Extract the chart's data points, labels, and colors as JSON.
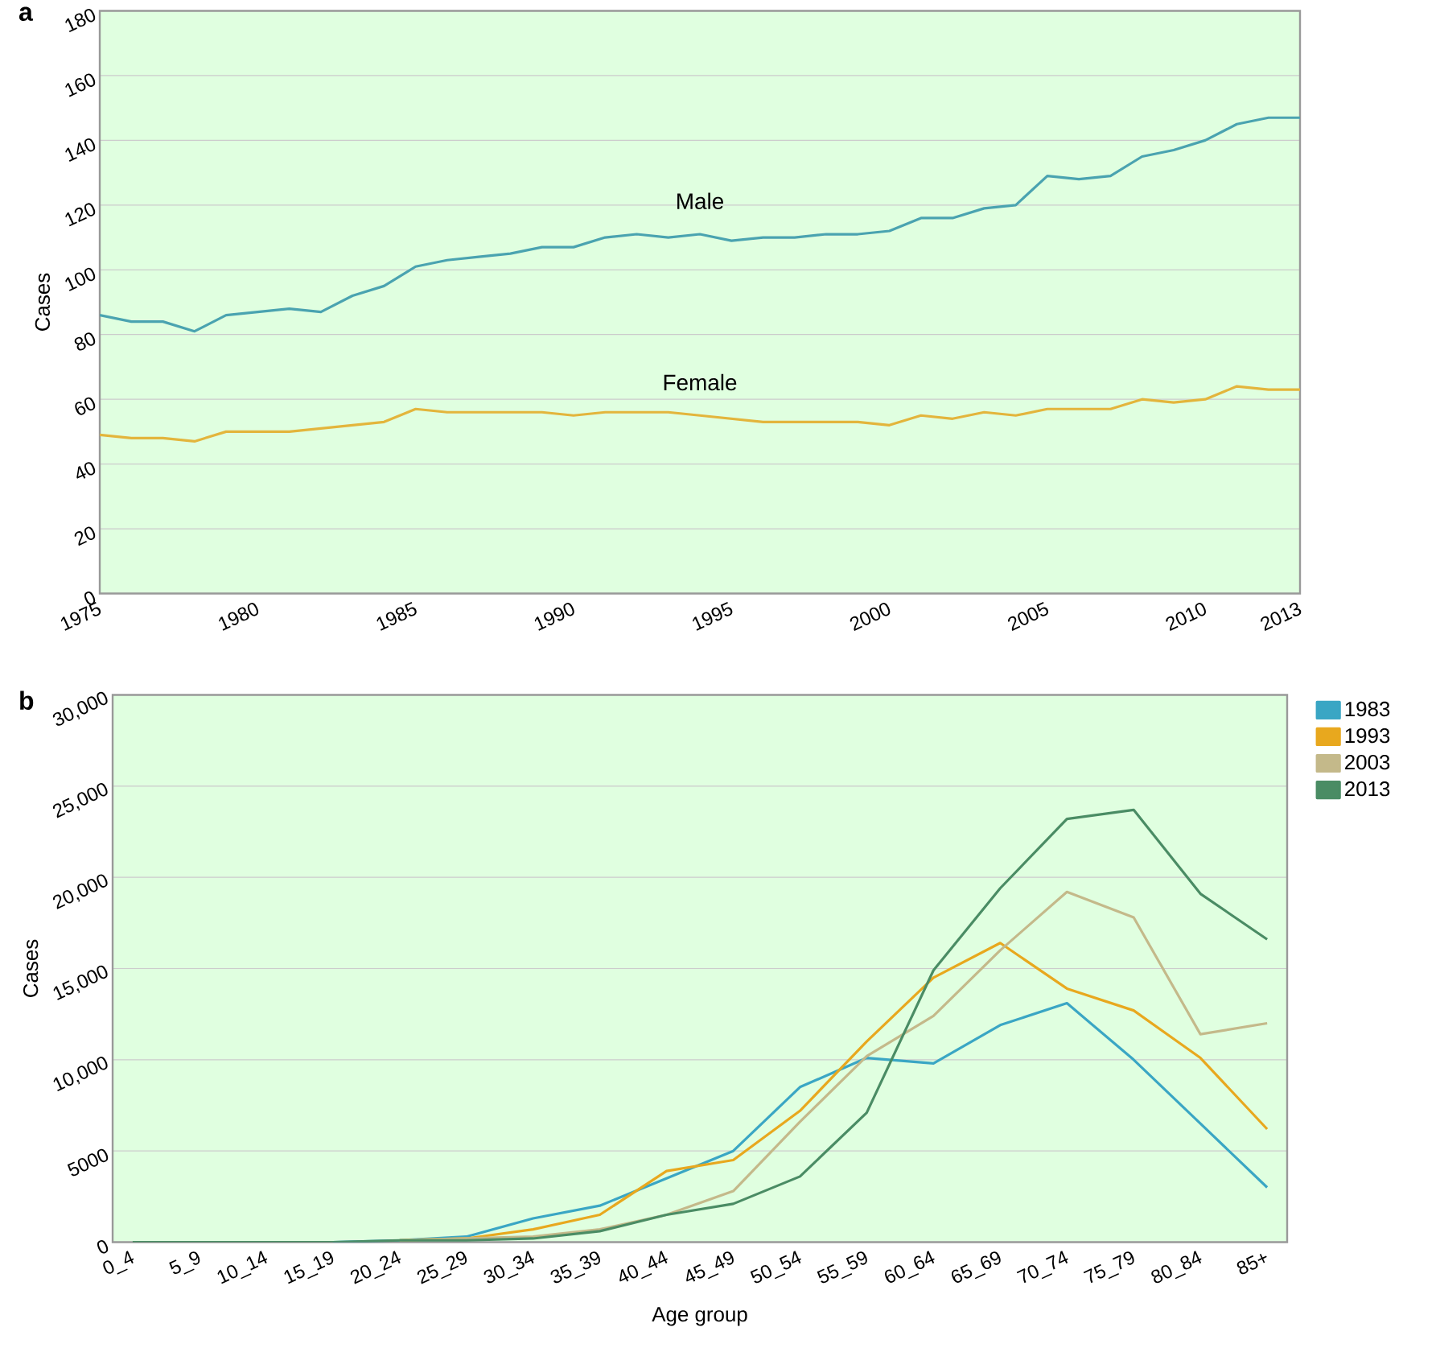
{
  "chart_data": [
    {
      "type": "line",
      "title": "a",
      "ylabel": "Cases",
      "x": [
        1975,
        1976,
        1977,
        1978,
        1979,
        1980,
        1981,
        1982,
        1983,
        1984,
        1985,
        1986,
        1987,
        1988,
        1989,
        1990,
        1991,
        1992,
        1993,
        1994,
        1995,
        1996,
        1997,
        1998,
        1999,
        2000,
        2001,
        2002,
        2003,
        2004,
        2005,
        2006,
        2007,
        2008,
        2009,
        2010,
        2011,
        2012,
        2013
      ],
      "series": [
        {
          "name": "Male",
          "color": "#4aa3b0",
          "values": [
            86,
            84,
            84,
            81,
            86,
            87,
            88,
            87,
            92,
            95,
            101,
            103,
            104,
            105,
            107,
            107,
            110,
            111,
            110,
            111,
            109,
            110,
            110,
            111,
            111,
            112,
            116,
            116,
            119,
            120,
            129,
            128,
            129,
            135,
            137,
            140,
            145,
            147,
            147
          ]
        },
        {
          "name": "Female",
          "color": "#e3b53c",
          "values": [
            49,
            48,
            48,
            47,
            50,
            50,
            50,
            51,
            52,
            53,
            57,
            56,
            56,
            56,
            56,
            55,
            56,
            56,
            56,
            55,
            54,
            53,
            53,
            53,
            53,
            52,
            55,
            54,
            56,
            55,
            57,
            57,
            57,
            60,
            59,
            60,
            64,
            63,
            63
          ]
        }
      ],
      "xlim": [
        1975,
        2013
      ],
      "xticks": [
        1975,
        1980,
        1985,
        1990,
        1995,
        2000,
        2005,
        2010,
        2013
      ],
      "ylim": [
        0,
        180
      ],
      "yticks": [
        0,
        20,
        40,
        60,
        80,
        100,
        120,
        140,
        160,
        180
      ],
      "grid": "y",
      "legend": false
    },
    {
      "type": "line",
      "title": "b",
      "xlabel": "Age group",
      "ylabel": "Cases",
      "categories": [
        "0_4",
        "5_9",
        "10_14",
        "15_19",
        "20_24",
        "25_29",
        "30_34",
        "35_39",
        "40_44",
        "45_49",
        "50_54",
        "55_59",
        "60_64",
        "65_69",
        "70_74",
        "75_79",
        "80_84",
        "85+"
      ],
      "series": [
        {
          "name": "1983",
          "color": "#3aa6c4",
          "values": [
            null,
            null,
            null,
            0,
            100,
            300,
            1300,
            2000,
            3500,
            5000,
            8500,
            10100,
            9800,
            11900,
            13100,
            10000,
            6500,
            3000
          ]
        },
        {
          "name": "1993",
          "color": "#e8a81e",
          "values": [
            null,
            null,
            null,
            null,
            100,
            200,
            700,
            1500,
            3900,
            4500,
            7200,
            11000,
            14500,
            16400,
            13900,
            12700,
            10100,
            6200
          ]
        },
        {
          "name": "2003",
          "color": "#c4b98a",
          "values": [
            null,
            null,
            null,
            null,
            100,
            200,
            300,
            700,
            1500,
            2800,
            6600,
            10200,
            12400,
            16000,
            19200,
            17800,
            11400,
            12000
          ]
        },
        {
          "name": "2013",
          "color": "#4a8c64",
          "values": [
            0,
            0,
            0,
            0,
            100,
            100,
            200,
            600,
            1500,
            2100,
            3600,
            7100,
            14900,
            19400,
            23200,
            23700,
            19100,
            16600
          ]
        }
      ],
      "ylim": [
        0,
        30000
      ],
      "yticks": [
        0,
        5000,
        {
          "value": 10000,
          "label": "10,000"
        },
        {
          "value": 15000,
          "label": "15,000"
        },
        {
          "value": 20000,
          "label": "20,000"
        },
        {
          "value": 25000,
          "label": "25,000"
        },
        {
          "value": 30000,
          "label": "30,000"
        }
      ],
      "grid": "y",
      "legend": "right"
    }
  ]
}
